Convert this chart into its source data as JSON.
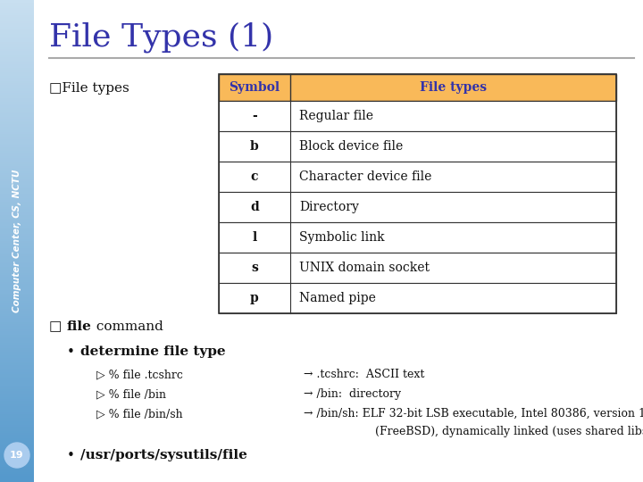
{
  "title": "File Types (1)",
  "title_color": "#3333aa",
  "sidebar_text": "Computer Center, CS, NCTU",
  "page_bg": "#ffffff",
  "page_number": "19",
  "table_header_bg": "#f9b959",
  "table_header_color": "#3333aa",
  "table_border_color": "#333333",
  "table_symbols": [
    "-",
    "b",
    "c",
    "d",
    "l",
    "s",
    "p"
  ],
  "table_descriptions": [
    "Regular file",
    "Block device file",
    "Character device file",
    "Directory",
    "Symbolic link",
    "UNIX domain socket",
    "Named pipe"
  ],
  "divider_color": "#aaaaaa",
  "sidebar_top_color": "#c8dff0",
  "sidebar_bot_color": "#5599cc"
}
